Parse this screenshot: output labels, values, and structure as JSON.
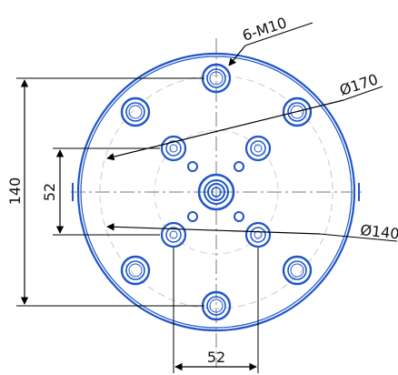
{
  "drawing": {
    "callouts": {
      "thread_label": "6-M10",
      "diameter_170_label": "Ø170",
      "diameter_140_label": "Ø140"
    },
    "dimensions": {
      "height_140_label": "140",
      "height_52_label": "52",
      "width_52_label": "52"
    },
    "colors": {
      "part_outline": "#1f56c8",
      "dimension_lines": "#000000",
      "center_lines": "#7a7a7a",
      "pitch_circle": "#bdbdbd"
    }
  }
}
